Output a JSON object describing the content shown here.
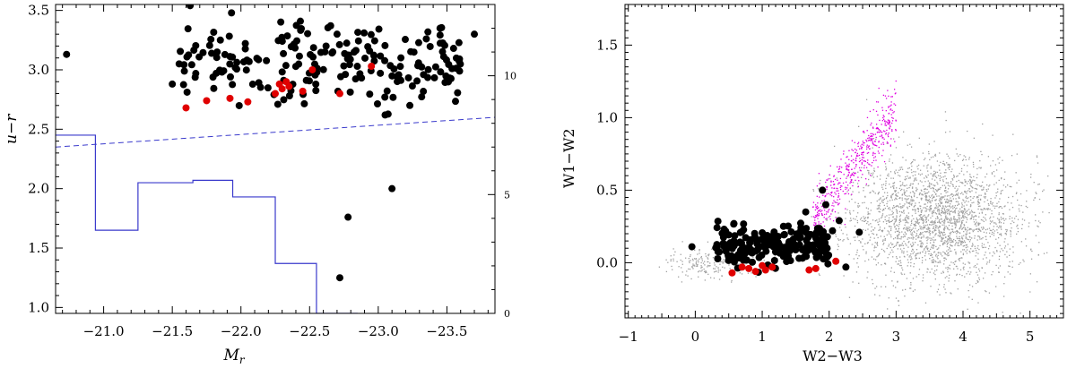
{
  "chart_data": [
    {
      "type": "scatter",
      "xlabel": "M_r",
      "xlabel_main": "M",
      "xlabel_sub": "r",
      "ylabel": "u−r",
      "xlim": [
        -20.65,
        -23.85
      ],
      "ylim": [
        0.95,
        3.55
      ],
      "x_ticks": [
        -21.0,
        -21.5,
        -22.0,
        -22.5,
        -23.0,
        -23.5
      ],
      "x_tick_labels": [
        "−21.0",
        "−21.5",
        "−22.0",
        "−22.5",
        "−23.0",
        "−23.5"
      ],
      "y_ticks": [
        1.0,
        1.5,
        2.0,
        2.5,
        3.0,
        3.5
      ],
      "y_tick_labels": [
        "1.0",
        "1.5",
        "2.0",
        "2.5",
        "3.0",
        "3.5"
      ],
      "right_axis": {
        "ylim": [
          0,
          13
        ],
        "ticks": [
          0,
          5,
          10
        ],
        "tick_labels": [
          "0",
          "5",
          "10"
        ]
      },
      "divider_line": {
        "style": "dashed",
        "color": "#3a3acc",
        "x": [
          -20.65,
          -23.85
        ],
        "y": [
          2.35,
          2.6
        ]
      },
      "histogram": {
        "color": "#3a3acc",
        "bin_edges": [
          -20.65,
          -20.94,
          -21.25,
          -21.65,
          -21.94,
          -22.25,
          -22.55,
          -22.85
        ],
        "counts": [
          7.5,
          3.5,
          5.5,
          5.6,
          4.9,
          2.1,
          0.0
        ]
      },
      "series": [
        {
          "marker_color": "#000000",
          "seed": 7,
          "cluster": {
            "count": 200,
            "x_range": [
              -21.55,
              -23.6
            ],
            "y_mean": 3.05,
            "y_spread": 0.16
          },
          "points": [
            [
              -20.73,
              3.13
            ],
            [
              -21.5,
              2.88
            ],
            [
              -21.55,
              3.05
            ],
            [
              -21.63,
              3.54
            ],
            [
              -22.62,
              3.2
            ],
            [
              -22.7,
              3.3
            ],
            [
              -23.05,
              2.62
            ],
            [
              -23.1,
              2.0
            ],
            [
              -22.78,
              1.76
            ],
            [
              -22.72,
              1.25
            ],
            [
              -23.23,
              2.7
            ],
            [
              -23.45,
              3.35
            ],
            [
              -23.7,
              3.3
            ],
            [
              -23.35,
              3.26
            ],
            [
              -21.85,
              3.25
            ]
          ]
        },
        {
          "marker_color": "#e00000",
          "points": [
            [
              -21.6,
              2.68
            ],
            [
              -21.75,
              2.74
            ],
            [
              -21.92,
              2.76
            ],
            [
              -22.05,
              2.73
            ],
            [
              -22.25,
              2.8
            ],
            [
              -22.3,
              2.84
            ],
            [
              -22.35,
              2.86
            ],
            [
              -22.45,
              2.82
            ],
            [
              -22.52,
              3.0
            ],
            [
              -22.33,
              2.9
            ],
            [
              -22.72,
              2.8
            ],
            [
              -22.95,
              3.03
            ],
            [
              -22.28,
              2.88
            ]
          ]
        }
      ]
    },
    {
      "type": "scatter",
      "xlabel": "W2−W3",
      "ylabel": "W1−W2",
      "xlim": [
        -1.05,
        5.5
      ],
      "ylim": [
        -0.38,
        1.78
      ],
      "x_ticks": [
        -1,
        0,
        1,
        2,
        3,
        4,
        5
      ],
      "x_tick_labels": [
        "−1",
        "0",
        "1",
        "2",
        "3",
        "4",
        "5"
      ],
      "y_ticks": [
        0.0,
        0.5,
        1.0,
        1.5
      ],
      "y_tick_labels": [
        "0.0",
        "0.5",
        "1.0",
        "1.5"
      ],
      "series": [
        {
          "marker_color": "#a0a0a0",
          "seed": 11,
          "clusters": [
            {
              "count": 2400,
              "x_mean": 3.6,
              "x_sd": 0.65,
              "y_mean": 0.3,
              "y_sd": 0.22,
              "x_range": [
                1.6,
                5.3
              ],
              "y_range": [
                -0.35,
                1.7
              ]
            },
            {
              "count": 220,
              "x_mean": 0.3,
              "x_sd": 0.35,
              "y_mean": 0.0,
              "y_sd": 0.05,
              "x_range": [
                -0.7,
                1.5
              ],
              "y_range": [
                -0.15,
                0.2
              ]
            }
          ]
        },
        {
          "marker_color": "#e000e0",
          "seed": 23,
          "band": {
            "count": 480,
            "x_range": [
              1.75,
              3.0
            ],
            "slope": 0.6,
            "intercept": -0.75,
            "spread": 0.09
          }
        },
        {
          "marker_color": "#000000",
          "seed": 31,
          "cluster": {
            "count": 190,
            "x_range": [
              0.3,
              2.0
            ],
            "y_mean": 0.12,
            "y_spread": 0.07
          },
          "points": [
            [
              -0.05,
              0.11
            ],
            [
              1.9,
              0.5
            ],
            [
              1.95,
              0.4
            ],
            [
              1.65,
              0.35
            ],
            [
              2.45,
              0.21
            ],
            [
              2.15,
              0.29
            ],
            [
              2.25,
              -0.03
            ],
            [
              1.55,
              0.2
            ],
            [
              2.05,
              0.22
            ]
          ]
        },
        {
          "marker_color": "#e00000",
          "points": [
            [
              0.55,
              -0.07
            ],
            [
              0.7,
              -0.03
            ],
            [
              0.8,
              -0.04
            ],
            [
              0.9,
              -0.06
            ],
            [
              1.0,
              -0.02
            ],
            [
              1.05,
              -0.05
            ],
            [
              1.15,
              -0.03
            ],
            [
              1.7,
              -0.05
            ],
            [
              1.8,
              -0.04
            ],
            [
              2.1,
              0.01
            ]
          ]
        }
      ]
    }
  ]
}
